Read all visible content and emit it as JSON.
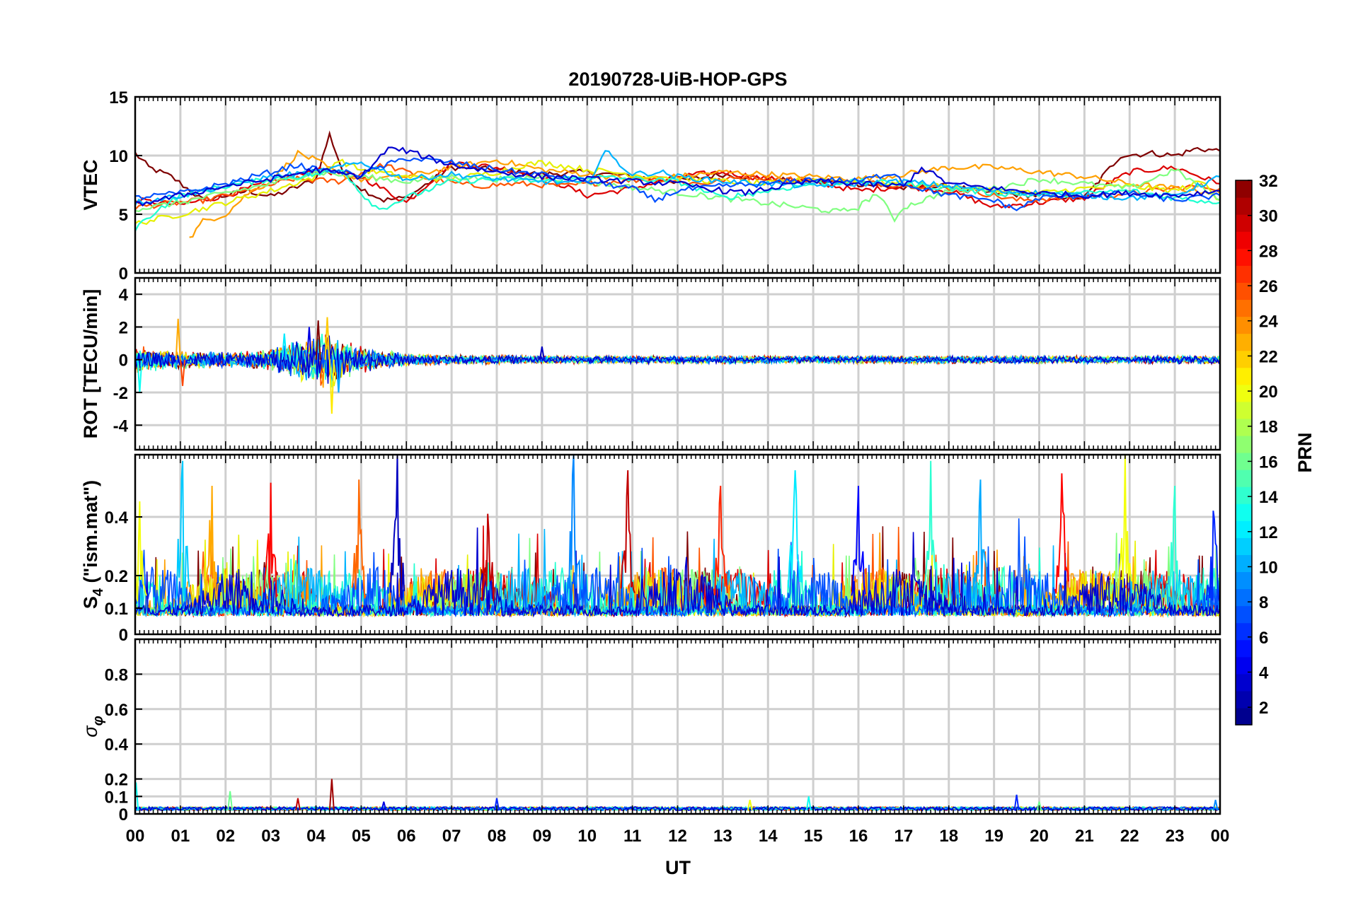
{
  "figure": {
    "title": "20190728-UiB-HOP-GPS",
    "xlabel": "UT",
    "colorbar_label": "PRN"
  },
  "chart_data": [
    {
      "type": "line",
      "title": "20190728-UiB-HOP-GPS",
      "ylabel": "VTEC",
      "xlabel": "",
      "x_unit": "hours UT",
      "xlim": [
        0,
        24
      ],
      "ylim": [
        0,
        15
      ],
      "yticks": [
        "0",
        "5",
        "10",
        "15"
      ],
      "ytick_values": [
        0,
        5,
        10,
        15
      ],
      "grid": true,
      "series": [
        {
          "prn": 32,
          "color": "#7f0000",
          "x": [
            0.0,
            0.3,
            0.8,
            1.5,
            2.5,
            3.0,
            3.5,
            4.0,
            4.3,
            4.6,
            5.0,
            5.5,
            6.0,
            7.0,
            8.0,
            9.0,
            10.0,
            11.0,
            12.0,
            13.0,
            14.0,
            15.0,
            16.0,
            17.0,
            18.0,
            19.0,
            20.0,
            21.0,
            21.8,
            22.5,
            23.0,
            23.5,
            24.0
          ],
          "y": [
            10.2,
            9.0,
            8.2,
            6.2,
            7.0,
            6.5,
            7.2,
            8.0,
            11.8,
            8.6,
            7.2,
            6.2,
            6.4,
            9.0,
            8.8,
            8.4,
            8.6,
            8.2,
            7.8,
            8.4,
            8.0,
            7.8,
            7.6,
            7.2,
            7.4,
            6.8,
            6.6,
            6.4,
            10.0,
            10.2,
            10.0,
            10.6,
            10.4
          ]
        },
        {
          "prn": 29,
          "color": "#dc0000",
          "x": [
            0.0,
            1.0,
            2.0,
            3.0,
            4.0,
            5.0,
            6.0,
            7.0,
            8.0,
            9.0,
            10.0,
            11.0,
            12.0,
            13.0,
            14.0,
            15.0,
            16.0,
            17.0,
            18.0,
            19.0,
            20.0,
            21.0,
            22.0,
            23.0,
            24.0
          ],
          "y": [
            6.2,
            5.8,
            6.6,
            7.8,
            8.8,
            8.2,
            6.0,
            9.4,
            9.0,
            8.2,
            6.6,
            7.2,
            8.2,
            8.6,
            8.0,
            7.8,
            7.0,
            7.4,
            7.0,
            5.6,
            6.0,
            6.4,
            8.6,
            9.0,
            7.6
          ]
        },
        {
          "prn": 25,
          "color": "#ff5500",
          "x": [
            0.0,
            1.5,
            2.5,
            3.5,
            4.5,
            5.5,
            6.5,
            7.5,
            8.5,
            9.5,
            10.5,
            11.5,
            12.5,
            13.5,
            14.5,
            15.5,
            16.5,
            17.5,
            18.5,
            19.5,
            20.5,
            21.5,
            22.5,
            23.5,
            24.0
          ],
          "y": [
            5.6,
            6.2,
            7.0,
            8.0,
            7.8,
            9.2,
            8.0,
            7.4,
            7.6,
            7.4,
            7.8,
            8.0,
            7.6,
            8.2,
            8.0,
            7.8,
            7.6,
            7.4,
            7.0,
            6.2,
            6.4,
            6.6,
            7.0,
            7.4,
            7.2
          ]
        },
        {
          "prn": 22,
          "color": "#ffa000",
          "x": [
            1.2,
            1.5,
            2.0,
            2.5,
            3.0,
            3.6,
            4.0,
            4.5,
            5.0,
            6.0,
            7.0,
            8.0,
            9.0,
            10.0,
            11.0,
            12.0,
            13.0,
            14.0,
            15.0,
            16.0,
            17.0,
            18.0,
            19.0,
            20.0,
            21.0,
            22.0,
            23.0,
            24.0
          ],
          "y": [
            2.9,
            4.4,
            5.0,
            6.8,
            7.8,
            10.2,
            9.6,
            8.4,
            8.0,
            8.2,
            9.0,
            9.6,
            8.8,
            8.4,
            8.0,
            8.2,
            8.6,
            8.4,
            8.2,
            8.0,
            8.4,
            9.0,
            9.0,
            8.6,
            8.2,
            7.6,
            7.2,
            6.8
          ]
        },
        {
          "prn": 19,
          "color": "#e6f000",
          "x": [
            0.0,
            1.0,
            2.0,
            3.0,
            4.0,
            4.5,
            5.0,
            6.0,
            7.0,
            8.0,
            8.6,
            9.0,
            10.0,
            11.0,
            12.0,
            13.0,
            14.0,
            15.0,
            16.0,
            17.0,
            18.0,
            19.0,
            20.0,
            21.0,
            22.0,
            23.0,
            23.6,
            24.0
          ],
          "y": [
            4.2,
            5.0,
            6.0,
            7.0,
            8.2,
            9.6,
            8.8,
            8.2,
            8.0,
            8.6,
            9.2,
            9.4,
            8.8,
            8.4,
            8.0,
            7.8,
            7.6,
            8.0,
            7.8,
            7.6,
            7.4,
            7.0,
            6.8,
            7.2,
            7.4,
            7.0,
            7.8,
            6.2
          ]
        },
        {
          "prn": 16,
          "color": "#80ff80",
          "x": [
            0.0,
            1.0,
            2.0,
            3.0,
            4.0,
            5.0,
            6.0,
            7.0,
            8.0,
            9.0,
            15.6,
            16.0,
            16.4,
            16.8,
            17.0,
            18.0,
            19.0,
            20.0,
            21.0,
            22.0,
            23.0,
            24.0
          ],
          "y": [
            5.4,
            6.0,
            6.8,
            7.6,
            8.6,
            8.2,
            7.8,
            8.2,
            8.0,
            8.2,
            5.2,
            5.6,
            6.8,
            4.6,
            5.6,
            7.0,
            7.2,
            8.0,
            7.6,
            7.2,
            8.8,
            6.2
          ]
        },
        {
          "prn": 13,
          "color": "#20ffd0",
          "x": [
            0.0,
            0.5,
            1.0,
            2.0,
            3.0,
            4.0,
            4.6,
            5.0,
            5.4,
            6.0,
            7.0,
            8.0,
            9.0,
            10.0,
            11.0,
            12.0,
            13.0,
            14.0,
            15.0,
            16.0,
            17.0,
            18.0,
            19.0,
            20.0,
            21.0,
            22.0,
            23.0,
            24.0
          ],
          "y": [
            3.8,
            5.4,
            6.6,
            7.4,
            8.0,
            8.4,
            8.8,
            6.8,
            5.4,
            6.4,
            7.8,
            8.0,
            7.8,
            8.2,
            8.0,
            7.8,
            6.4,
            7.0,
            7.6,
            7.8,
            7.6,
            7.2,
            6.8,
            6.6,
            6.8,
            7.0,
            6.4,
            6.0
          ]
        },
        {
          "prn": 10,
          "color": "#00b4ff",
          "x": [
            0.0,
            1.0,
            2.0,
            3.0,
            4.0,
            5.0,
            6.0,
            7.0,
            8.0,
            9.0,
            10.0,
            10.4,
            10.8,
            11.0,
            11.6,
            12.0,
            13.0,
            14.0,
            15.0,
            16.0,
            17.0,
            18.0,
            19.0,
            20.0,
            21.0,
            22.0,
            23.0,
            24.0
          ],
          "y": [
            6.0,
            6.6,
            7.4,
            8.2,
            8.6,
            9.4,
            8.0,
            8.4,
            8.0,
            7.8,
            7.6,
            10.4,
            9.0,
            8.4,
            8.6,
            8.2,
            7.8,
            7.6,
            7.4,
            7.6,
            7.8,
            7.4,
            7.0,
            6.8,
            6.6,
            6.4,
            6.6,
            8.2
          ]
        },
        {
          "prn": 6,
          "color": "#0050ff",
          "x": [
            0.0,
            1.0,
            2.0,
            3.0,
            3.6,
            4.0,
            5.0,
            6.0,
            7.0,
            8.0,
            9.0,
            10.0,
            11.0,
            11.5,
            12.0,
            13.0,
            14.0,
            15.0,
            16.0,
            16.8,
            17.0,
            18.0,
            19.0,
            19.5,
            20.0,
            21.0,
            22.0,
            23.0,
            24.0
          ],
          "y": [
            6.4,
            6.8,
            7.6,
            8.6,
            9.2,
            8.8,
            8.4,
            9.8,
            9.4,
            8.8,
            8.4,
            7.8,
            7.2,
            6.2,
            7.0,
            7.4,
            7.6,
            8.0,
            7.8,
            8.6,
            7.6,
            6.6,
            6.2,
            5.4,
            6.4,
            6.6,
            6.8,
            6.2,
            6.6
          ]
        },
        {
          "prn": 3,
          "color": "#0000d0",
          "x": [
            0.0,
            1.0,
            2.0,
            3.0,
            4.0,
            5.0,
            5.6,
            6.0,
            7.0,
            8.0,
            9.0,
            10.0,
            11.0,
            12.0,
            13.0,
            13.5,
            14.0,
            15.0,
            16.0,
            17.0,
            17.4,
            18.0,
            19.0,
            20.0,
            21.0,
            22.0,
            23.0,
            24.0
          ],
          "y": [
            5.8,
            6.6,
            7.4,
            8.0,
            8.8,
            8.2,
            10.6,
            10.4,
            9.2,
            8.6,
            8.2,
            8.0,
            7.8,
            7.6,
            7.0,
            6.8,
            7.2,
            7.8,
            7.6,
            7.4,
            9.0,
            7.6,
            7.2,
            6.8,
            6.6,
            6.8,
            6.6,
            7.0
          ]
        }
      ]
    },
    {
      "type": "line",
      "ylabel": "ROT [TECU/min]",
      "xlabel": "",
      "x_unit": "hours UT",
      "xlim": [
        0,
        24
      ],
      "ylim": [
        -5.5,
        5
      ],
      "yticks": [
        "-4",
        "-2",
        "0",
        "2",
        "4"
      ],
      "ytick_values": [
        -4,
        -2,
        0,
        2,
        4
      ],
      "grid": true,
      "noise_envelope": {
        "description": "rate of TEC fluctuations around 0 for all PRNs",
        "x": [
          0,
          1,
          2,
          3,
          3.5,
          4,
          4.3,
          4.5,
          5,
          6,
          7,
          8,
          9,
          10,
          12,
          14,
          16,
          18,
          20,
          22,
          24
        ],
        "amplitude": [
          0.9,
          0.6,
          0.5,
          0.7,
          1.2,
          1.5,
          2.2,
          1.4,
          0.9,
          0.4,
          0.3,
          0.3,
          0.25,
          0.25,
          0.25,
          0.25,
          0.25,
          0.25,
          0.25,
          0.25,
          0.25
        ]
      },
      "peaks": [
        {
          "x": 0.95,
          "y": 2.5,
          "prn": 23
        },
        {
          "x": 1.05,
          "y": -1.6,
          "prn": 26
        },
        {
          "x": 3.3,
          "y": 1.6,
          "prn": 12
        },
        {
          "x": 3.85,
          "y": 2.0,
          "prn": 4
        },
        {
          "x": 4.05,
          "y": 2.4,
          "prn": 32
        },
        {
          "x": 4.25,
          "y": 2.6,
          "prn": 22
        },
        {
          "x": 4.35,
          "y": -3.3,
          "prn": 21
        },
        {
          "x": 4.5,
          "y": -2.0,
          "prn": 10
        },
        {
          "x": 0.1,
          "y": -2.0,
          "prn": 13
        },
        {
          "x": 9.0,
          "y": 0.8,
          "prn": 3
        }
      ],
      "series_colors": [
        "#7f0000",
        "#dc0000",
        "#ff5500",
        "#ffa000",
        "#e6f000",
        "#80ff80",
        "#20ffd0",
        "#00b4ff",
        "#0050ff",
        "#0000d0"
      ]
    },
    {
      "type": "line",
      "ylabel": "S4 (\"ism.mat\")",
      "ylabel_parts": {
        "main": "S",
        "sub": "4",
        "rest": " (\"ism.mat\")"
      },
      "xlabel": "",
      "x_unit": "hours UT",
      "xlim": [
        0,
        24
      ],
      "ylim": [
        0,
        0.6
      ],
      "yticks": [
        "0",
        "0.1",
        "0.2",
        "0.4"
      ],
      "ytick_values": [
        0,
        0.1,
        0.2,
        0.4
      ],
      "y_scale": "nonlinear",
      "grid": true,
      "baseline": 0.07,
      "spikes": [
        {
          "x": 0.1,
          "y": 0.45,
          "prn": 20
        },
        {
          "x": 1.05,
          "y": 0.58,
          "prn": 11
        },
        {
          "x": 1.7,
          "y": 0.5,
          "prn": 23
        },
        {
          "x": 3.0,
          "y": 0.51,
          "prn": 28
        },
        {
          "x": 4.95,
          "y": 0.52,
          "prn": 25
        },
        {
          "x": 5.8,
          "y": 0.6,
          "prn": 3
        },
        {
          "x": 7.8,
          "y": 0.41,
          "prn": 30
        },
        {
          "x": 9.7,
          "y": 0.6,
          "prn": 9
        },
        {
          "x": 10.9,
          "y": 0.55,
          "prn": 30
        },
        {
          "x": 12.95,
          "y": 0.5,
          "prn": 27
        },
        {
          "x": 14.6,
          "y": 0.55,
          "prn": 12
        },
        {
          "x": 16.0,
          "y": 0.5,
          "prn": 5
        },
        {
          "x": 17.6,
          "y": 0.58,
          "prn": 14
        },
        {
          "x": 18.7,
          "y": 0.52,
          "prn": 10
        },
        {
          "x": 20.5,
          "y": 0.54,
          "prn": 28
        },
        {
          "x": 21.9,
          "y": 0.6,
          "prn": 20
        },
        {
          "x": 23.0,
          "y": 0.5,
          "prn": 14
        },
        {
          "x": 23.85,
          "y": 0.42,
          "prn": 6
        }
      ],
      "series_colors": [
        "#7f0000",
        "#dc0000",
        "#ff5500",
        "#ffa000",
        "#e6f000",
        "#80ff80",
        "#20ffd0",
        "#00b4ff",
        "#0050ff",
        "#0000d0"
      ]
    },
    {
      "type": "line",
      "ylabel": "σφ",
      "ylabel_parts": {
        "main": "σ",
        "sub": "φ"
      },
      "xlabel": "UT",
      "x_unit": "hours UT",
      "xlim": [
        0,
        24
      ],
      "ylim": [
        0,
        1
      ],
      "yticks": [
        "0",
        "0.1",
        "0.2",
        "0.4",
        "0.6",
        "0.8"
      ],
      "ytick_values": [
        0,
        0.1,
        0.2,
        0.4,
        0.6,
        0.8
      ],
      "grid": true,
      "baseline": 0.02,
      "spikes": [
        {
          "x": 0.02,
          "y": 0.18,
          "prn": 13
        },
        {
          "x": 2.1,
          "y": 0.13,
          "prn": 16
        },
        {
          "x": 3.6,
          "y": 0.09,
          "prn": 30
        },
        {
          "x": 4.35,
          "y": 0.2,
          "prn": 31
        },
        {
          "x": 5.5,
          "y": 0.07,
          "prn": 4
        },
        {
          "x": 8.0,
          "y": 0.09,
          "prn": 6
        },
        {
          "x": 13.6,
          "y": 0.08,
          "prn": 20
        },
        {
          "x": 14.9,
          "y": 0.1,
          "prn": 13
        },
        {
          "x": 19.5,
          "y": 0.11,
          "prn": 6
        },
        {
          "x": 20.0,
          "y": 0.07,
          "prn": 16
        },
        {
          "x": 23.9,
          "y": 0.08,
          "prn": 9
        }
      ],
      "series_colors": [
        "#7f0000",
        "#dc0000",
        "#ff5500",
        "#ffa000",
        "#e6f000",
        "#80ff80",
        "#20ffd0",
        "#00b4ff",
        "#0050ff",
        "#0000d0"
      ]
    }
  ],
  "x_axis": {
    "tick_labels": [
      "00",
      "01",
      "02",
      "03",
      "04",
      "05",
      "06",
      "07",
      "08",
      "09",
      "10",
      "11",
      "12",
      "13",
      "14",
      "15",
      "16",
      "17",
      "18",
      "19",
      "20",
      "21",
      "22",
      "23",
      "00"
    ],
    "tick_values": [
      0,
      1,
      2,
      3,
      4,
      5,
      6,
      7,
      8,
      9,
      10,
      11,
      12,
      13,
      14,
      15,
      16,
      17,
      18,
      19,
      20,
      21,
      22,
      23,
      24
    ]
  },
  "colorbar": {
    "label": "PRN",
    "range": [
      1,
      32
    ],
    "tick_labels": [
      "2",
      "4",
      "6",
      "8",
      "10",
      "12",
      "14",
      "16",
      "18",
      "20",
      "22",
      "24",
      "26",
      "28",
      "30",
      "32"
    ],
    "tick_values": [
      2,
      4,
      6,
      8,
      10,
      12,
      14,
      16,
      18,
      20,
      22,
      24,
      26,
      28,
      30,
      32
    ],
    "colormap": "jet",
    "levels": 32
  }
}
